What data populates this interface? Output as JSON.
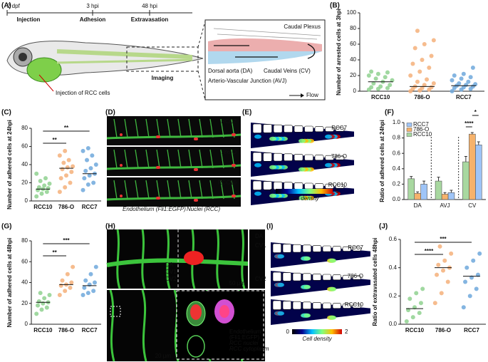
{
  "panel_labels": [
    "(A)",
    "(B)",
    "(C)",
    "(D)",
    "(E)",
    "(F)",
    "(G)",
    "(H)",
    "(I)",
    "(J)"
  ],
  "A": {
    "timeline": [
      "2 dpf",
      "3 hpi",
      "48 hpi"
    ],
    "stages": [
      "Injection",
      "Adhesion",
      "Extravasation"
    ],
    "injection_note": "Injection of RCC cells",
    "imaging": "Imaging",
    "inset_title": "Caudal Plexus",
    "legend": [
      "Dorsal aorta (DA)",
      "Caudal Veins (CV)",
      "Arterio-Vascular Junction (AVJ)",
      "Flow"
    ]
  },
  "D": {
    "labels": [
      "RCC7",
      "786-O",
      "RCC10"
    ],
    "caption": [
      "Endothelium (Fli1:EGFP)",
      "Nuclei (RCC)"
    ]
  },
  "E": {
    "labels": [
      "RCC7",
      "786-O",
      "RCC10"
    ],
    "colorbar_ticks": [
      0,
      5
    ],
    "colorbar_label": "Cell density"
  },
  "H": {
    "vessel_labels": [
      "DA",
      "CV1",
      "CV2"
    ],
    "side_labels": [
      "DA",
      "CV1",
      "CV2"
    ],
    "scales": [
      "50 µm",
      "20 µm"
    ],
    "legend": [
      "Endothelium",
      "(Fli1:EGFP)",
      "RCC nuclei",
      "RCC cytoplasm"
    ]
  },
  "I": {
    "labels": [
      "RCC7",
      "786-O",
      "RCC10"
    ],
    "colorbar_ticks": [
      0,
      2
    ],
    "colorbar_label": "Cell density"
  },
  "chart_data": [
    {
      "type": "strip",
      "ylabel": "Number of arrested cells at 3hpi",
      "categories": [
        "RCC10",
        "786-O",
        "RCC7"
      ],
      "series": [
        {
          "color": "#8fd18f",
          "values": [
            2,
            3,
            4,
            5,
            6,
            8,
            10,
            12,
            14,
            16,
            18,
            20,
            22,
            24,
            25
          ],
          "mean": 12
        },
        {
          "color": "#f5b07a",
          "values": [
            0,
            1,
            2,
            3,
            4,
            5,
            6,
            8,
            10,
            12,
            15,
            20,
            25,
            30,
            35,
            40,
            45,
            55,
            60,
            65,
            77
          ],
          "mean": 6
        },
        {
          "color": "#6fa8dc",
          "values": [
            0,
            2,
            3,
            4,
            5,
            6,
            7,
            8,
            9,
            10,
            12,
            14,
            16,
            18,
            20,
            22,
            30
          ],
          "mean": 7
        }
      ],
      "ylim": [
        0,
        100
      ],
      "yticks": [
        0,
        20,
        40,
        60,
        80,
        100
      ],
      "significance": []
    },
    {
      "type": "strip",
      "ylabel": "Number of adhered cells at 24hpi",
      "categories": [
        "RCC10",
        "786-O",
        "RCC7"
      ],
      "series": [
        {
          "color": "#8fd18f",
          "values": [
            5,
            8,
            10,
            12,
            13,
            14,
            15,
            17,
            19,
            22,
            25,
            30
          ],
          "mean": 13
        },
        {
          "color": "#f5b07a",
          "values": [
            10,
            15,
            20,
            25,
            28,
            32,
            35,
            37,
            38,
            42,
            45,
            50,
            55
          ],
          "mean": 36
        },
        {
          "color": "#6fa8dc",
          "values": [
            12,
            18,
            20,
            25,
            28,
            30,
            33,
            36,
            40,
            45,
            50,
            55,
            58
          ],
          "mean": 30
        }
      ],
      "ylim": [
        0,
        80
      ],
      "yticks": [
        0,
        20,
        40,
        60,
        80
      ],
      "significance": [
        {
          "text": "**",
          "between": [
            "RCC10",
            "RCC7"
          ]
        },
        {
          "text": "**",
          "between": [
            "RCC10",
            "786-O"
          ]
        }
      ]
    },
    {
      "type": "bar",
      "ylabel": "Ratio of adhered cells at 24hpi",
      "categories": [
        "DA",
        "AVJ",
        "CV"
      ],
      "series": [
        {
          "name": "RCC7",
          "color": "#9fc5f8",
          "values": [
            0.2,
            0.09,
            0.71
          ],
          "errors": [
            0.04,
            0.03,
            0.04
          ]
        },
        {
          "name": "786-O",
          "color": "#f6b26b",
          "values": [
            0.08,
            0.07,
            0.85
          ],
          "errors": [
            0.02,
            0.02,
            0.02
          ]
        },
        {
          "name": "RCC10",
          "color": "#a8d8a0",
          "values": [
            0.27,
            0.24,
            0.49
          ],
          "errors": [
            0.03,
            0.05,
            0.07
          ]
        }
      ],
      "ylim": [
        0,
        1
      ],
      "yticks": [
        {
          "value": 0,
          "label": "0.0"
        },
        {
          "value": 0.2,
          "label": "0.2"
        },
        {
          "value": 0.4,
          "label": "0.4"
        },
        {
          "value": 0.6,
          "label": "0.6"
        },
        {
          "value": 0.8,
          "label": "0.8"
        },
        {
          "value": 1,
          "label": "1.0"
        }
      ],
      "legend": "upper left",
      "significance": [
        {
          "text": "*",
          "group": "CV",
          "between": [
            "786-O",
            "RCC7"
          ]
        },
        {
          "text": "****",
          "group": "CV",
          "between": [
            "RCC10",
            "786-O"
          ]
        }
      ]
    },
    {
      "type": "strip",
      "ylabel": "Number of adhered cells at 48hpi",
      "categories": [
        "RCC10",
        "786-O",
        "RCC7"
      ],
      "series": [
        {
          "color": "#8fd18f",
          "values": [
            10,
            14,
            16,
            18,
            20,
            21,
            22,
            25,
            28,
            30
          ],
          "mean": 21
        },
        {
          "color": "#f5b07a",
          "values": [
            28,
            32,
            35,
            37,
            38,
            40,
            42,
            48,
            55
          ],
          "mean": 38
        },
        {
          "color": "#6fa8dc",
          "values": [
            28,
            30,
            32,
            35,
            38,
            40,
            42,
            48,
            55
          ],
          "mean": 37
        }
      ],
      "ylim": [
        0,
        80
      ],
      "yticks": [
        0,
        20,
        40,
        60,
        80
      ],
      "significance": [
        {
          "text": "***",
          "between": [
            "RCC10",
            "RCC7"
          ]
        },
        {
          "text": "**",
          "between": [
            "RCC10",
            "786-O"
          ]
        }
      ]
    },
    {
      "type": "strip",
      "ylabel": "Ratio of extravasated cells 48hpi",
      "categories": [
        "RCC10",
        "786-O",
        "RCC7"
      ],
      "series": [
        {
          "color": "#8fd18f",
          "values": [
            0.02,
            0.05,
            0.08,
            0.1,
            0.12,
            0.15,
            0.18,
            0.22,
            0.25
          ],
          "mean": 0.11
        },
        {
          "color": "#f5b07a",
          "values": [
            0.15,
            0.22,
            0.3,
            0.35,
            0.38,
            0.4,
            0.42,
            0.45,
            0.5,
            0.55
          ],
          "mean": 0.4
        },
        {
          "color": "#6fa8dc",
          "values": [
            0.12,
            0.2,
            0.25,
            0.3,
            0.33,
            0.35,
            0.4,
            0.45,
            0.5
          ],
          "mean": 0.34
        }
      ],
      "ylim": [
        0,
        0.6
      ],
      "yticks": [
        {
          "value": 0,
          "label": "0.0"
        },
        {
          "value": 0.2,
          "label": "0.2"
        },
        {
          "value": 0.4,
          "label": "0.4"
        },
        {
          "value": 0.6,
          "label": "0.6"
        }
      ],
      "significance": [
        {
          "text": "***",
          "between": [
            "RCC10",
            "RCC7"
          ]
        },
        {
          "text": "****",
          "between": [
            "RCC10",
            "786-O"
          ]
        }
      ]
    }
  ]
}
